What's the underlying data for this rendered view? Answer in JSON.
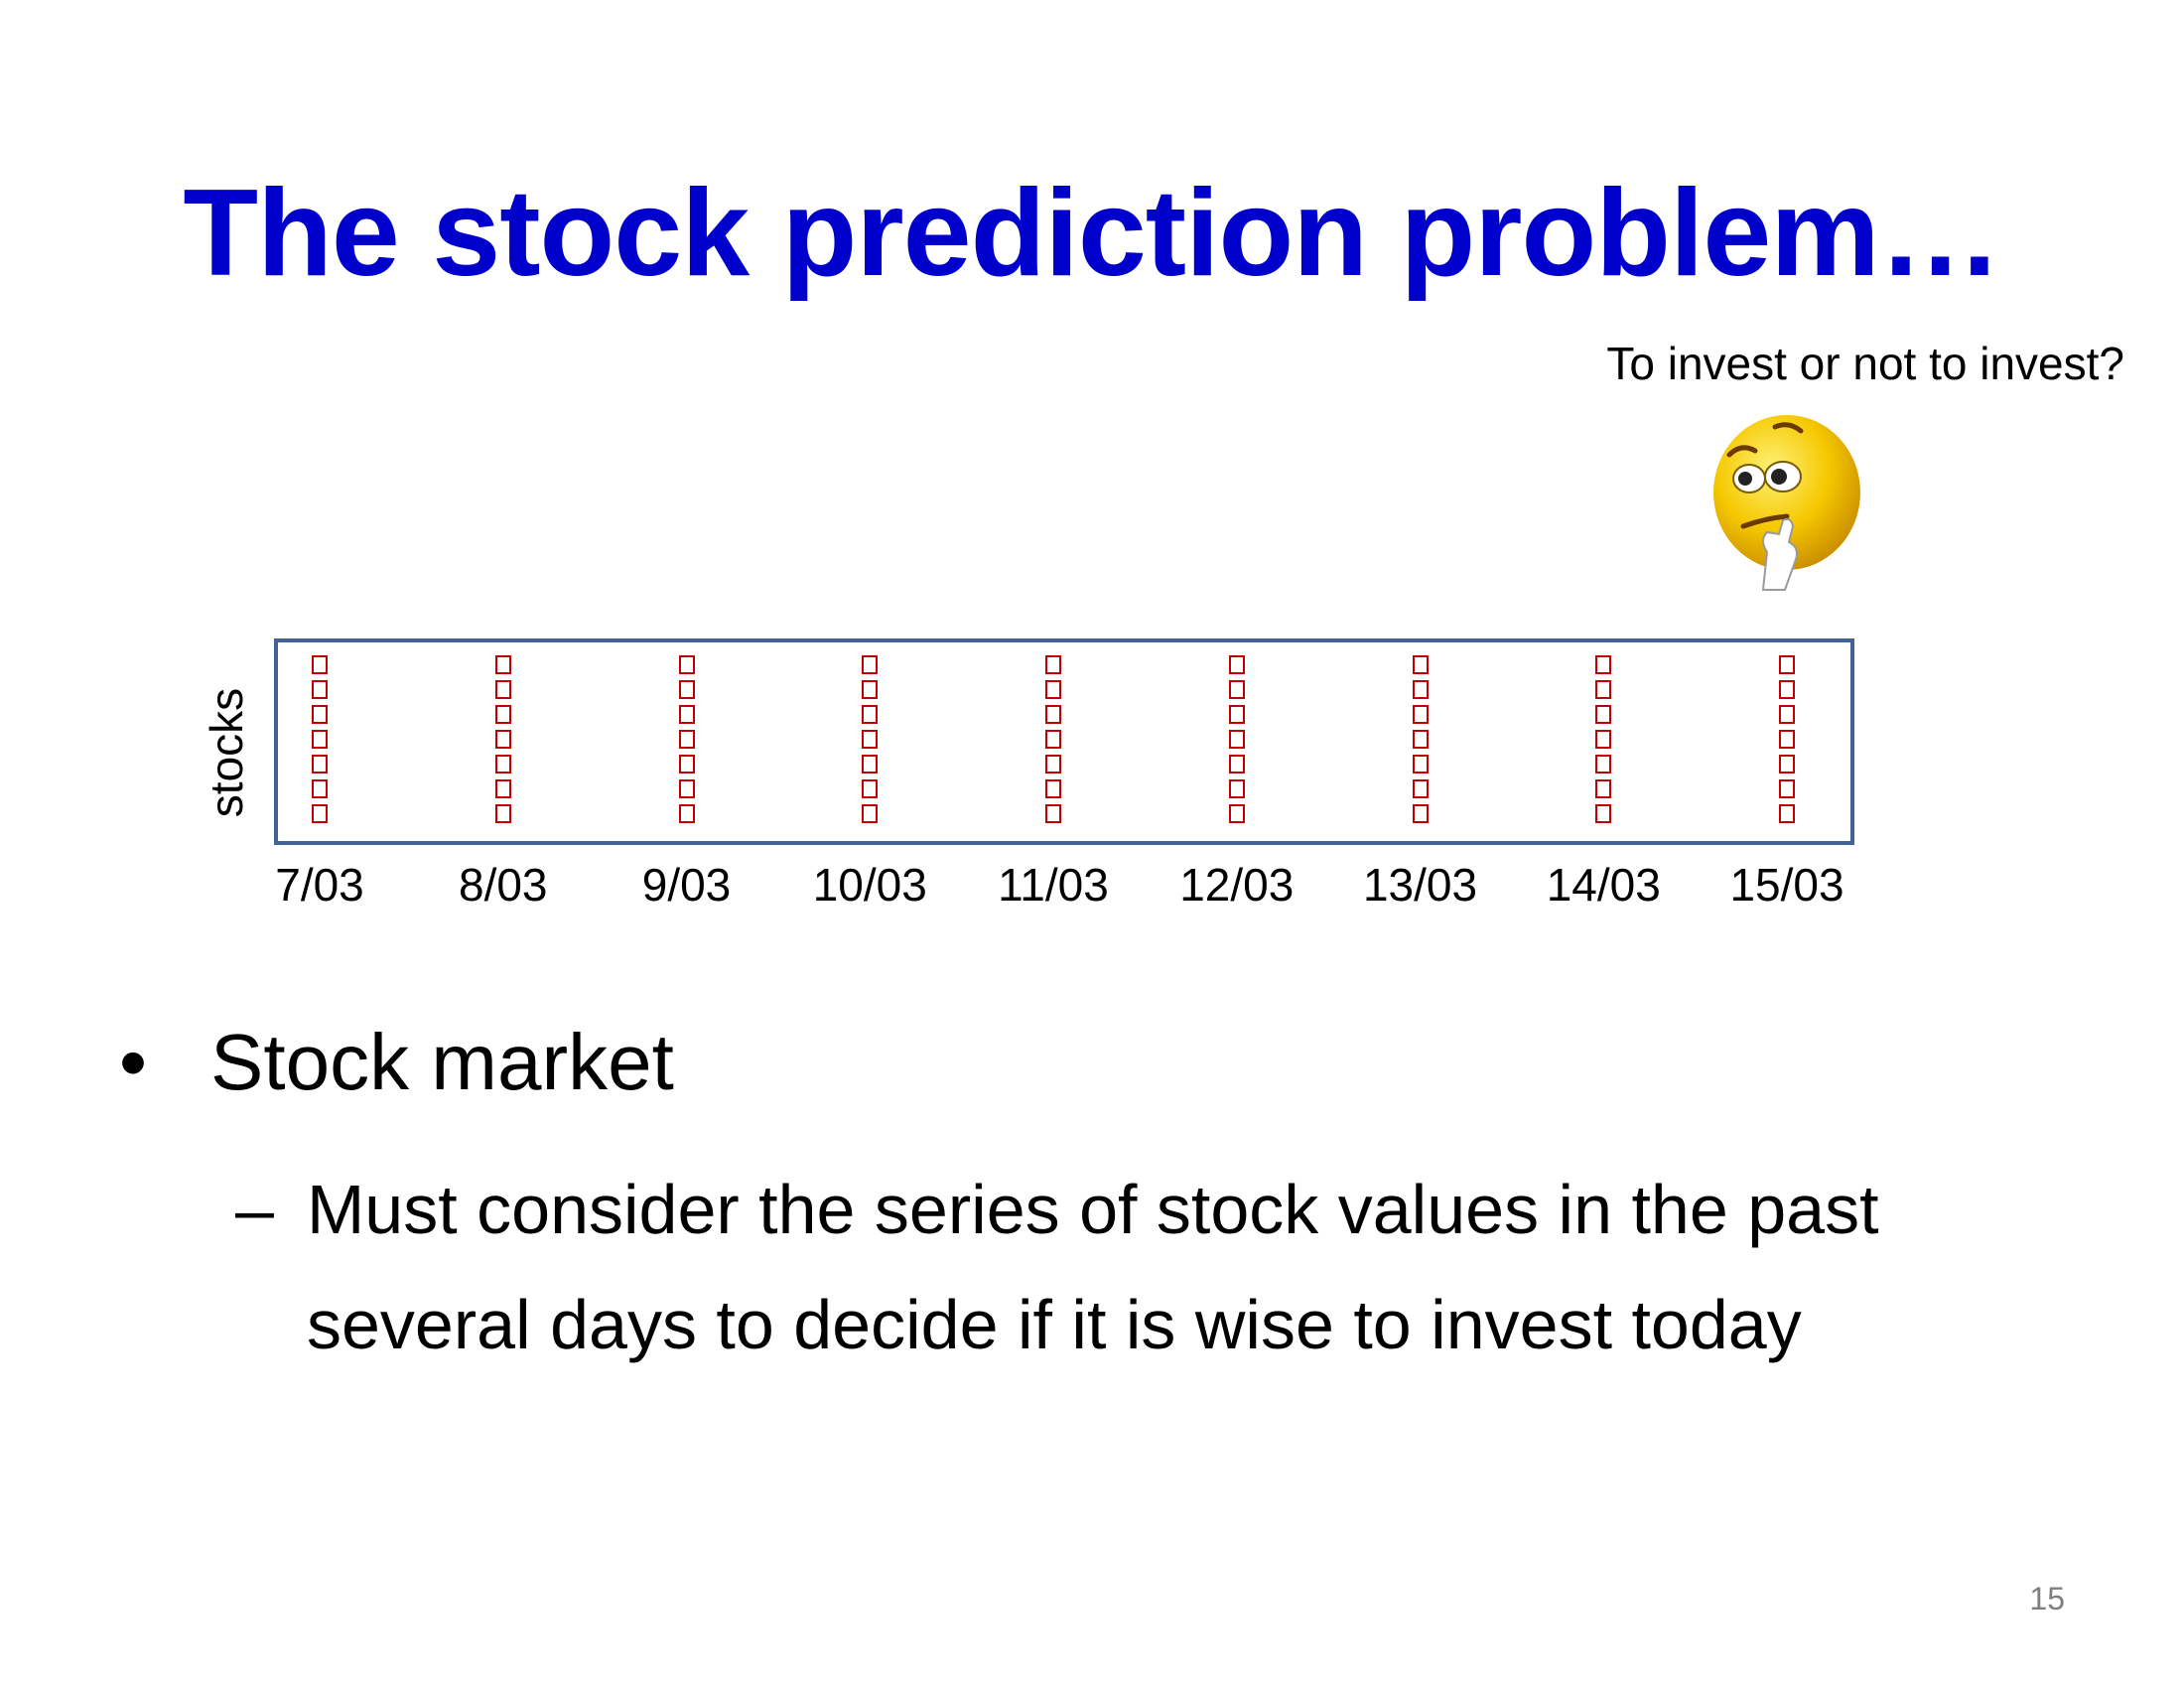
{
  "slide": {
    "title": "The stock prediction problem…",
    "question": "To invest or not to invest?",
    "axis_label": "stocks",
    "dates": [
      "7/03",
      "8/03",
      "9/03",
      "10/03",
      "11/03",
      "12/03",
      "13/03",
      "14/03",
      "15/03"
    ],
    "bullets": {
      "level1_symbol": "•",
      "level1_text": "Stock market",
      "level2_symbol": "–",
      "level2_line1": "Must consider the series of stock values in the past",
      "level2_line2": "several days to decide if it is wise to invest today"
    },
    "page_number": "15"
  },
  "colors": {
    "title": "#0000cc",
    "frame": "#42639a",
    "cells": "#c00000",
    "smiley_face": "#f5c800",
    "page_number": "#7f7f7f"
  },
  "icons": {
    "smiley": "thinking-face-icon"
  }
}
